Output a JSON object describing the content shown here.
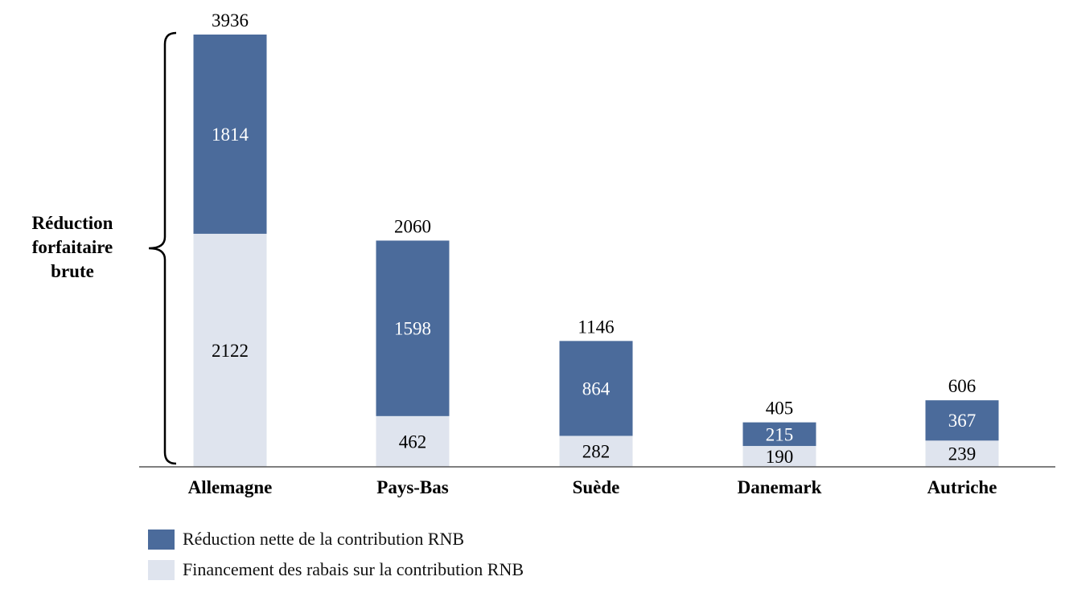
{
  "chart_data": {
    "type": "bar",
    "stacked": true,
    "categories": [
      "Allemagne",
      "Pays-Bas",
      "Suède",
      "Danemark",
      "Autriche"
    ],
    "series": [
      {
        "name": "Financement des rabais sur la contribution RNB",
        "color": "#dfe4ee",
        "label_color": "#000000",
        "values": [
          2122,
          462,
          282,
          190,
          239
        ]
      },
      {
        "name": "Réduction nette de la contribution RNB",
        "color": "#4b6b9b",
        "label_color": "#ffffff",
        "values": [
          1814,
          1598,
          864,
          215,
          367
        ]
      }
    ],
    "totals": [
      3936,
      2060,
      1146,
      405,
      606
    ],
    "ylim": [
      0,
      3936
    ],
    "grid": false,
    "legend": "bottom-left",
    "bracket": {
      "label_lines": [
        "Réduction",
        "forfaitaire",
        "brute"
      ],
      "category": "Allemagne"
    }
  }
}
